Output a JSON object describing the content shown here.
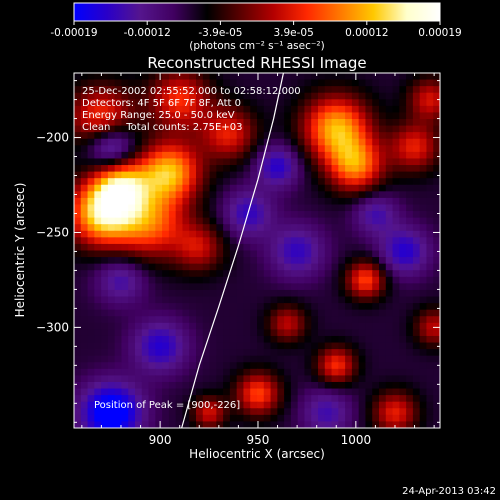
{
  "colorbar": {
    "tick_labels": [
      "-0.00019",
      "-0.00012",
      "-3.9e-05",
      "3.9e-05",
      "0.00012",
      "0.00019"
    ],
    "unit_label": "(photons cm⁻² s⁻¹ asec⁻²)",
    "colormap": [
      "#0000ff",
      "#2a00c8",
      "#55158d",
      "#400060",
      "#000000",
      "#5a0000",
      "#b40000",
      "#ff2800",
      "#ff7800",
      "#ffc800",
      "#ffffcc",
      "#ffffff"
    ]
  },
  "header": {
    "title": "Reconstructed RHESSI Image",
    "info_lines": [
      "25-Dec-2002 02:55:52.000 to 02:58:12.000",
      "Detectors: 4F 5F 6F 7F 8F, Att 0",
      "Energy Range: 25.0 - 50.0 keV",
      "Clean     Total counts: 2.75E+03"
    ],
    "peak_text": "Position of Peak = [900,-226]"
  },
  "footer": {
    "timestamp": "24-Apr-2013 03:42"
  },
  "chart_data": {
    "type": "heatmap",
    "title": "Reconstructed RHESSI Image",
    "xlabel": "Heliocentric X (arcsec)",
    "ylabel": "Heliocentric Y (arcsec)",
    "xlim": [
      856,
      1043
    ],
    "ylim": [
      -353,
      -166
    ],
    "x_ticks": [
      900,
      950,
      1000
    ],
    "y_ticks": [
      -200,
      -250,
      -300
    ],
    "color_range": [
      -0.00019,
      0.00019
    ],
    "peak": {
      "x": 900,
      "y": -226
    },
    "limb_curve": [
      [
        911,
        -353
      ],
      [
        920,
        -320
      ],
      [
        930,
        -289
      ],
      [
        940,
        -257
      ],
      [
        950,
        -222
      ],
      [
        958,
        -190
      ],
      [
        963,
        -166
      ]
    ],
    "blobs": [
      {
        "x": 870,
        "y": -240,
        "s": 12,
        "v": 0.00019
      },
      {
        "x": 880,
        "y": -225,
        "s": 10,
        "v": 0.00016
      },
      {
        "x": 905,
        "y": -218,
        "s": 11,
        "v": 0.00017
      },
      {
        "x": 895,
        "y": -245,
        "s": 13,
        "v": 0.00013
      },
      {
        "x": 870,
        "y": -190,
        "s": 12,
        "v": 0.00012
      },
      {
        "x": 910,
        "y": -180,
        "s": 11,
        "v": 0.00011
      },
      {
        "x": 935,
        "y": -198,
        "s": 10,
        "v": 0.0001
      },
      {
        "x": 920,
        "y": -258,
        "s": 9,
        "v": 8e-05
      },
      {
        "x": 990,
        "y": -195,
        "s": 12,
        "v": 0.00017
      },
      {
        "x": 1000,
        "y": -215,
        "s": 10,
        "v": 0.00014
      },
      {
        "x": 1030,
        "y": -205,
        "s": 9,
        "v": 0.0001
      },
      {
        "x": 1038,
        "y": -180,
        "s": 8,
        "v": 9e-05
      },
      {
        "x": 1005,
        "y": -275,
        "s": 7,
        "v": 0.00012
      },
      {
        "x": 965,
        "y": -298,
        "s": 7,
        "v": 8e-05
      },
      {
        "x": 950,
        "y": -335,
        "s": 8,
        "v": 0.00012
      },
      {
        "x": 990,
        "y": -320,
        "s": 7,
        "v": 0.00011
      },
      {
        "x": 1020,
        "y": -345,
        "s": 8,
        "v": 0.0001
      },
      {
        "x": 1040,
        "y": -300,
        "s": 7,
        "v": 8e-05
      },
      {
        "x": 925,
        "y": -345,
        "s": 6,
        "v": 9e-05
      },
      {
        "x": 875,
        "y": -205,
        "s": 9,
        "v": -0.00014
      },
      {
        "x": 945,
        "y": -240,
        "s": 9,
        "v": -9e-05
      },
      {
        "x": 960,
        "y": -215,
        "s": 8,
        "v": -0.0001
      },
      {
        "x": 1010,
        "y": -240,
        "s": 8,
        "v": -8e-05
      },
      {
        "x": 875,
        "y": -345,
        "s": 11,
        "v": -0.00016
      },
      {
        "x": 900,
        "y": -310,
        "s": 10,
        "v": -0.0001
      },
      {
        "x": 970,
        "y": -260,
        "s": 10,
        "v": -9e-05
      },
      {
        "x": 1025,
        "y": -260,
        "s": 9,
        "v": -0.0001
      },
      {
        "x": 985,
        "y": -345,
        "s": 9,
        "v": -8e-05
      },
      {
        "x": 880,
        "y": -275,
        "s": 9,
        "v": -8e-05
      }
    ]
  }
}
